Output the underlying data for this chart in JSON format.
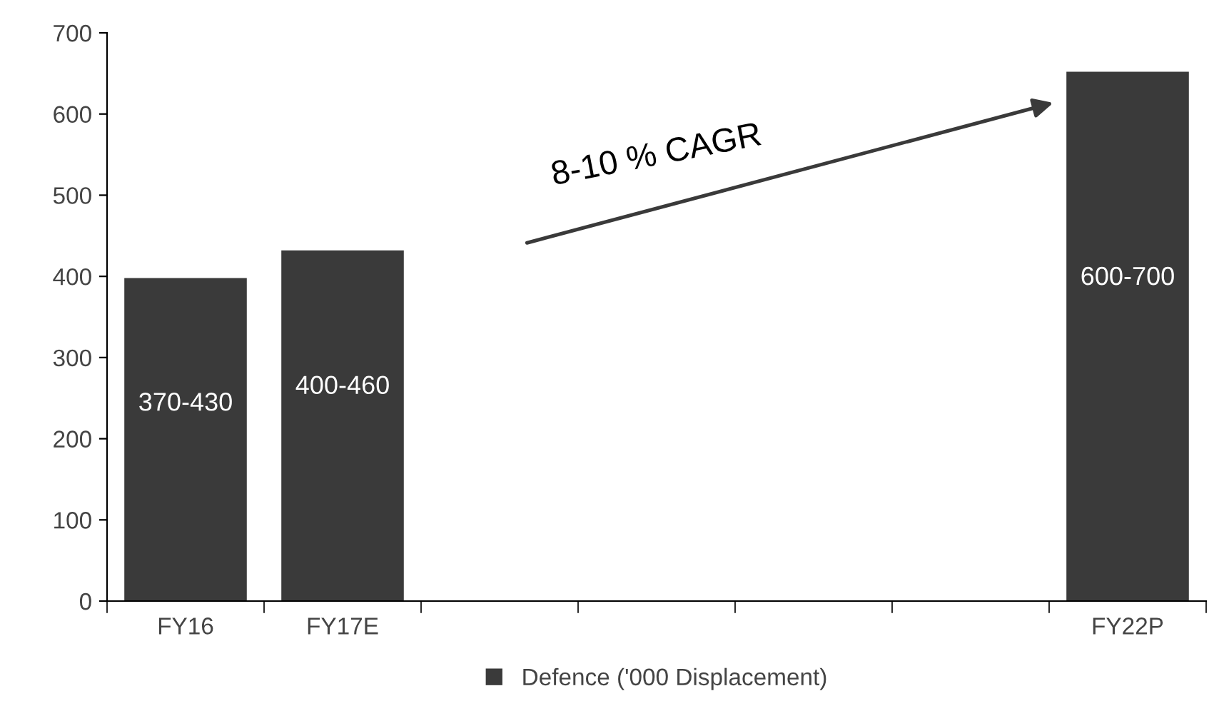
{
  "chart_data": {
    "type": "bar",
    "categories": [
      "FY16",
      "FY17E",
      null,
      null,
      null,
      null,
      "FY22P"
    ],
    "series": [
      {
        "name": "Defence ('000 Displacement)",
        "color": "#3a3a3a",
        "values": [
          398,
          432,
          null,
          null,
          null,
          null,
          652
        ],
        "value_labels": [
          "370-430",
          "400-460",
          null,
          null,
          null,
          null,
          "600-700"
        ]
      }
    ],
    "ylim": [
      0,
      700
    ],
    "yticks": [
      0,
      100,
      200,
      300,
      400,
      500,
      600,
      700
    ],
    "annotations": [
      "8-10 % CAGR"
    ],
    "grid": false,
    "legend": "bottom"
  }
}
